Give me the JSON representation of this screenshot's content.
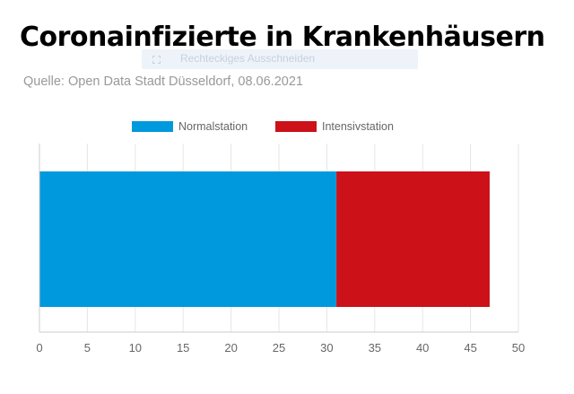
{
  "title": "Coronainfizierte in Krankenhäusern",
  "subtitle": "Quelle: Open Data Stadt Düsseldorf, 08.06.2021",
  "overlay": {
    "text": "Rechteckiges Ausschneiden",
    "icon": "dashed-rectangle-icon"
  },
  "chart_data": {
    "type": "bar",
    "orientation": "horizontal",
    "stacked": true,
    "categories": [
      ""
    ],
    "series": [
      {
        "name": "Normalstation",
        "values": [
          31
        ],
        "color": "#0099dd"
      },
      {
        "name": "Intensivstation",
        "values": [
          16
        ],
        "color": "#cc1118"
      }
    ],
    "xlim": [
      0,
      50
    ],
    "xticks": [
      0,
      5,
      10,
      15,
      20,
      25,
      30,
      35,
      40,
      45,
      50
    ],
    "grid": true,
    "legend": "top"
  }
}
